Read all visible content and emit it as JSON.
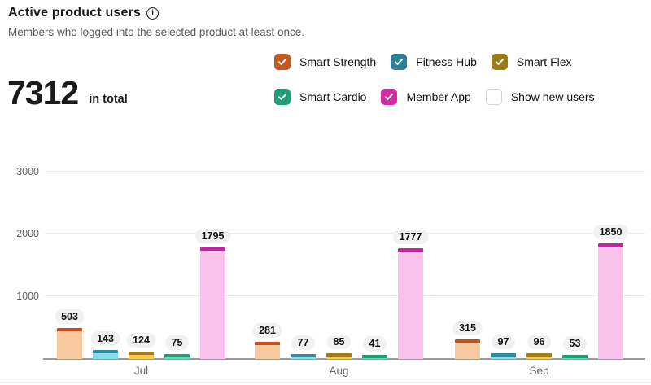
{
  "header": {
    "title": "Active product users",
    "subtitle": "Members who logged into the selected product at least once.",
    "info_icon": "i"
  },
  "total": {
    "value": "7312",
    "label": "in total"
  },
  "legend": {
    "rows": [
      [
        {
          "label": "Smart Strength",
          "checked": true,
          "color": "#c05a21"
        },
        {
          "label": "Fitness Hub",
          "checked": true,
          "color": "#2e8096"
        },
        {
          "label": "Smart Flex",
          "checked": true,
          "color": "#9c7c14"
        }
      ],
      [
        {
          "label": "Smart Cardio",
          "checked": true,
          "color": "#1f9e77"
        },
        {
          "label": "Member App",
          "checked": true,
          "color": "#d22ba5"
        },
        {
          "label": "Show new users",
          "checked": false,
          "color": "#ffffff"
        }
      ]
    ]
  },
  "chart_data": {
    "type": "bar",
    "title": "Active product users",
    "categories": [
      "Jul",
      "Aug",
      "Sep"
    ],
    "series": [
      {
        "name": "Smart Strength",
        "values": [
          503,
          281,
          315
        ],
        "body_color": "#f9c9a0",
        "cap_color": "#c0521c"
      },
      {
        "name": "Fitness Hub",
        "values": [
          143,
          77,
          97
        ],
        "body_color": "#84dcec",
        "cap_color": "#2e8ca2"
      },
      {
        "name": "Smart Flex",
        "values": [
          124,
          85,
          96
        ],
        "body_color": "#f8cb4f",
        "cap_color": "#a07c1c"
      },
      {
        "name": "Smart Cardio",
        "values": [
          75,
          41,
          53
        ],
        "body_color": "#5fe0ae",
        "cap_color": "#1d9e78"
      },
      {
        "name": "Member App",
        "values": [
          1795,
          1777,
          1850
        ],
        "body_color": "#f9c3ee",
        "cap_color": "#cb1fa6"
      }
    ],
    "xlabel": "",
    "ylabel": "",
    "yticks": [
      1000,
      2000,
      3000
    ],
    "ylim": [
      0,
      3300
    ],
    "grid": true,
    "data_labels": true,
    "legend_position": "top-right"
  }
}
